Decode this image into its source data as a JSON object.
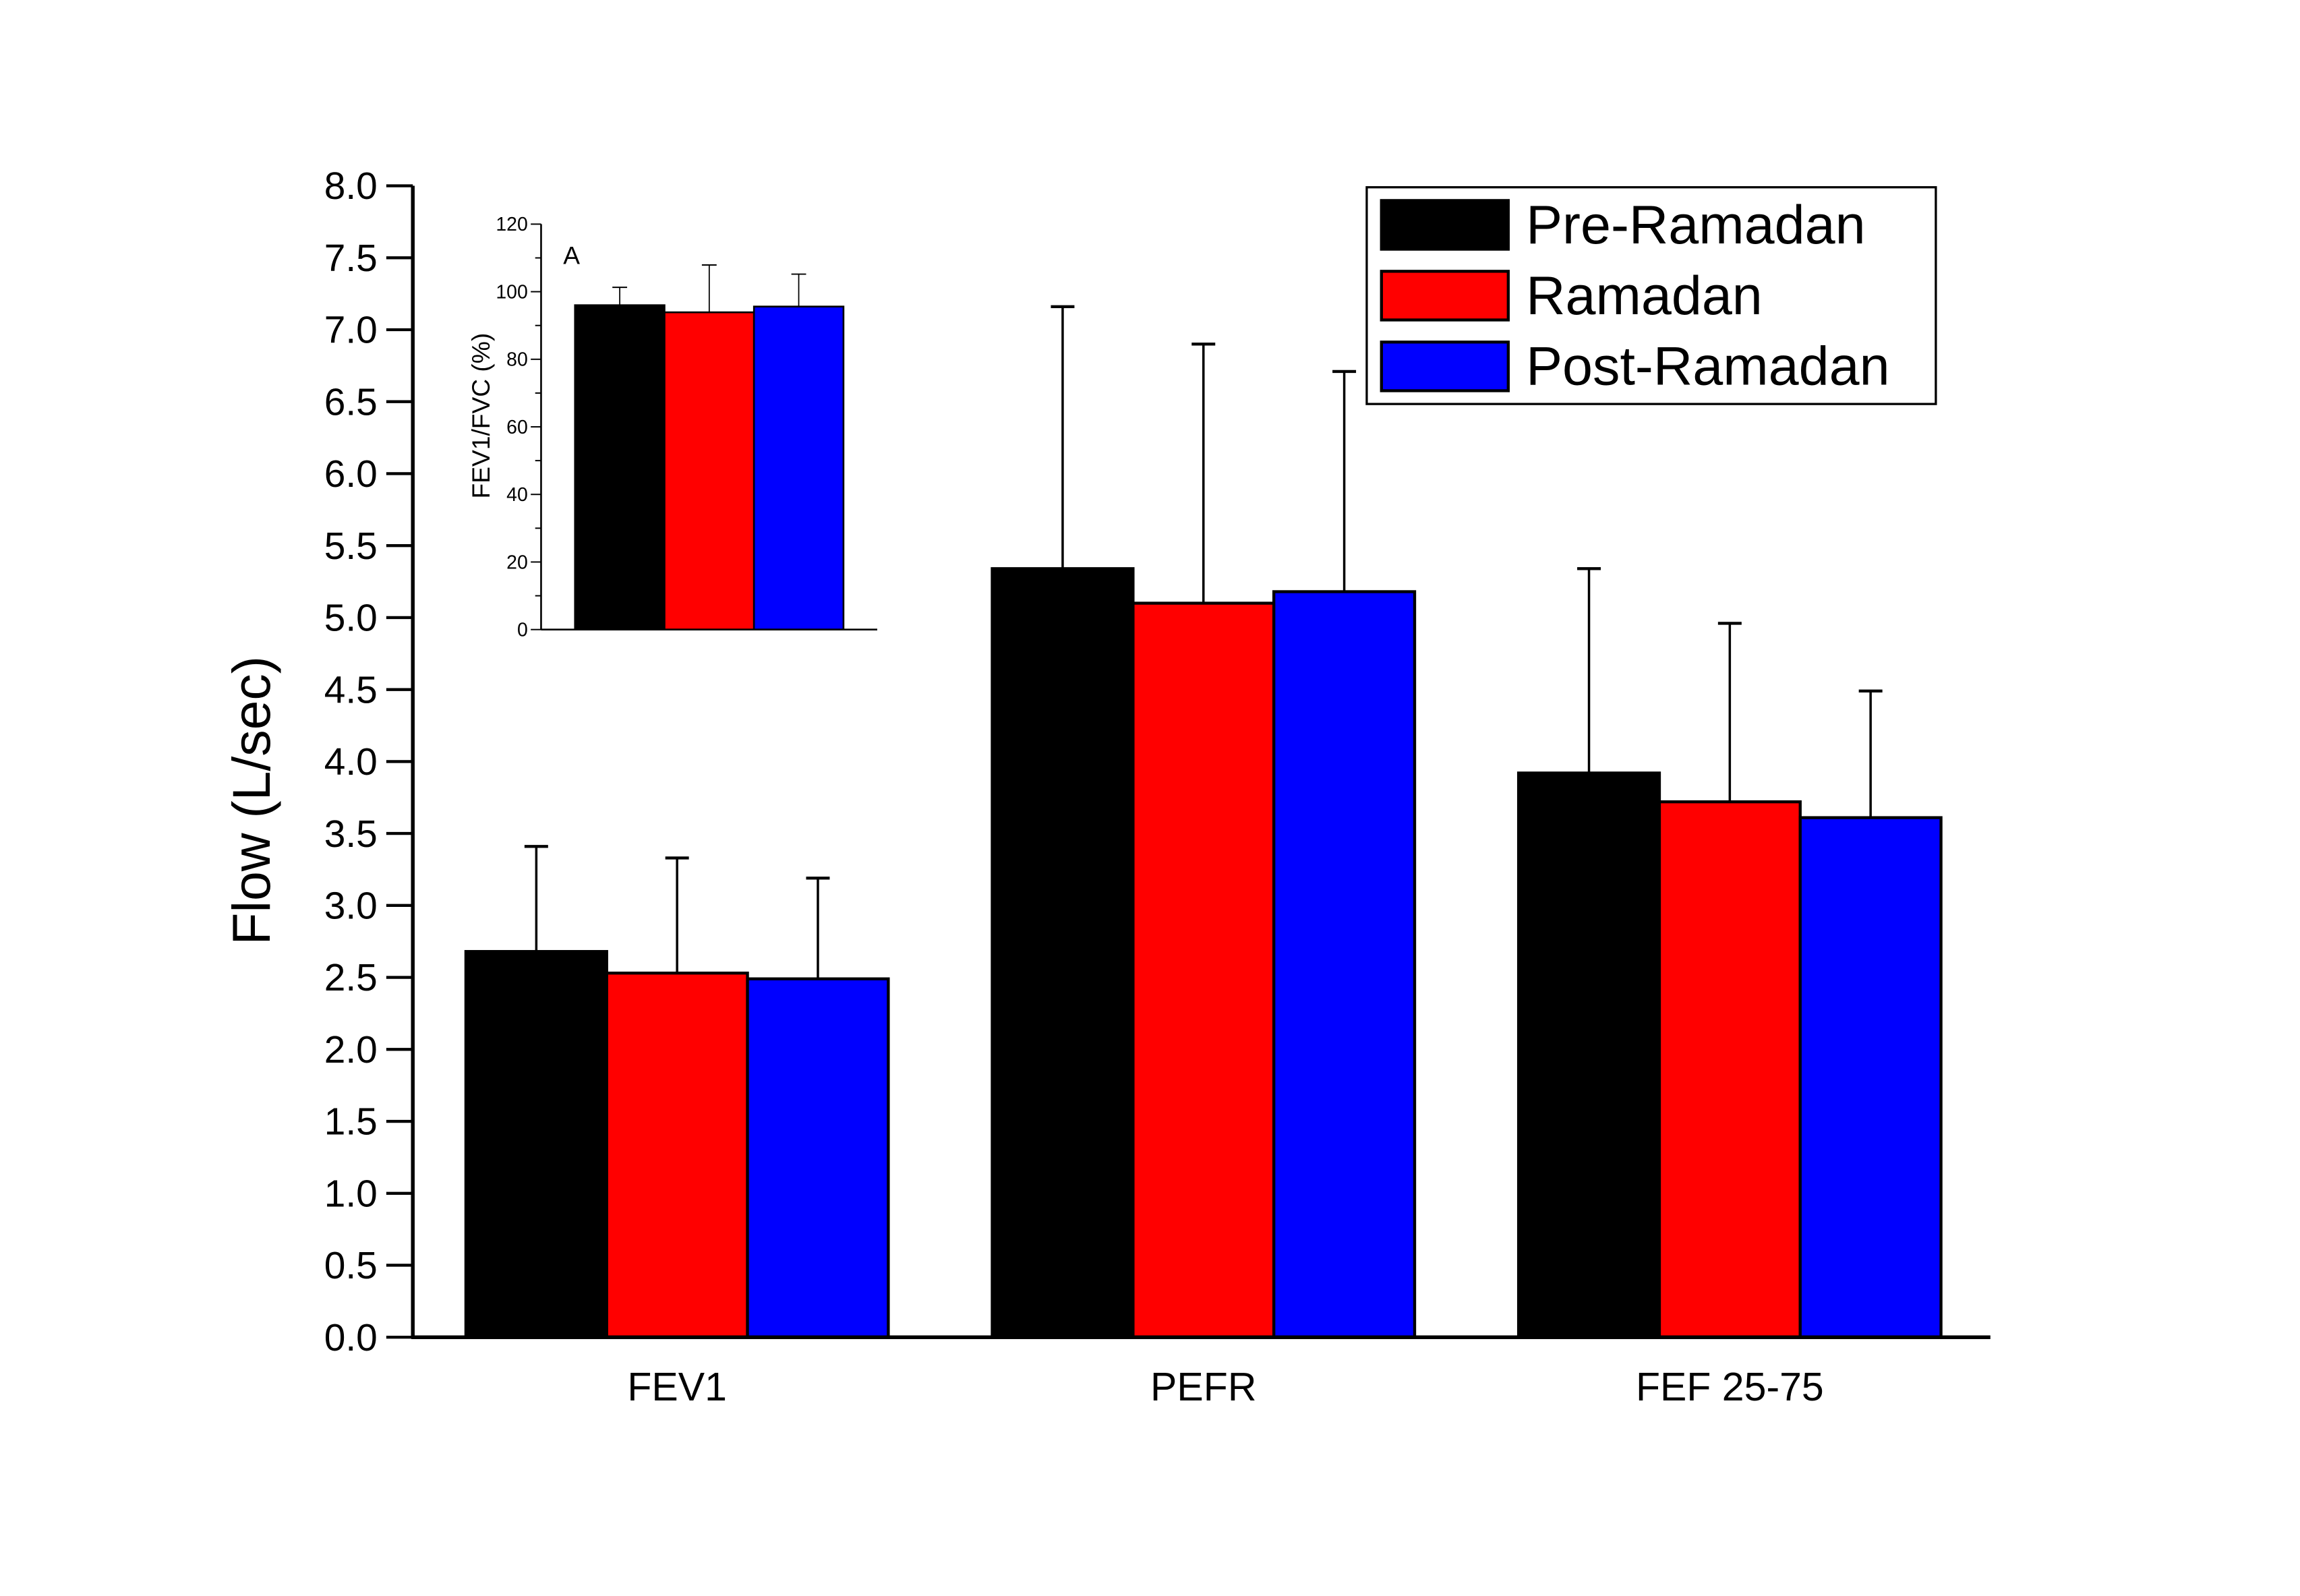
{
  "chart_data": [
    {
      "type": "bar",
      "ylabel": "Flow (L/sec)",
      "xlabel": "",
      "ylim": [
        0,
        8
      ],
      "yticks": [
        "0.0",
        "0.5",
        "1.0",
        "1.5",
        "2.0",
        "2.5",
        "3.0",
        "3.5",
        "4.0",
        "4.5",
        "5.0",
        "5.5",
        "6.0",
        "6.5",
        "7.0",
        "7.5",
        "8.0"
      ],
      "categories": [
        "FEV1",
        "PEFR",
        "FEF 25-75"
      ],
      "grid": false,
      "legend_position": "top-right",
      "series": [
        {
          "name": "Pre-Ramadan",
          "color": "#000000",
          "values": [
            2.68,
            5.34,
            3.92
          ],
          "error_upper": [
            3.41,
            7.16,
            5.34
          ]
        },
        {
          "name": "Ramadan",
          "color": "#ff0000",
          "values": [
            2.53,
            5.1,
            3.72
          ],
          "error_upper": [
            3.33,
            6.9,
            4.96
          ]
        },
        {
          "name": "Post-Ramadan",
          "color": "#0000ff",
          "values": [
            2.49,
            5.18,
            3.61
          ],
          "error_upper": [
            3.19,
            6.71,
            4.49
          ]
        }
      ]
    },
    {
      "type": "bar",
      "panel_label": "A",
      "ylabel": "FEV1/FVC (%)",
      "ylim": [
        0,
        120
      ],
      "yticks": [
        "0",
        "20",
        "40",
        "60",
        "80",
        "100",
        "120"
      ],
      "categories": [
        ""
      ],
      "series": [
        {
          "name": "Pre-Ramadan",
          "color": "#000000",
          "values": [
            96.0
          ],
          "error_upper": [
            101.3
          ]
        },
        {
          "name": "Ramadan",
          "color": "#ff0000",
          "values": [
            93.9
          ],
          "error_upper": [
            107.9
          ]
        },
        {
          "name": "Post-Ramadan",
          "color": "#0000ff",
          "values": [
            95.6
          ],
          "error_upper": [
            105.2
          ]
        }
      ]
    }
  ]
}
